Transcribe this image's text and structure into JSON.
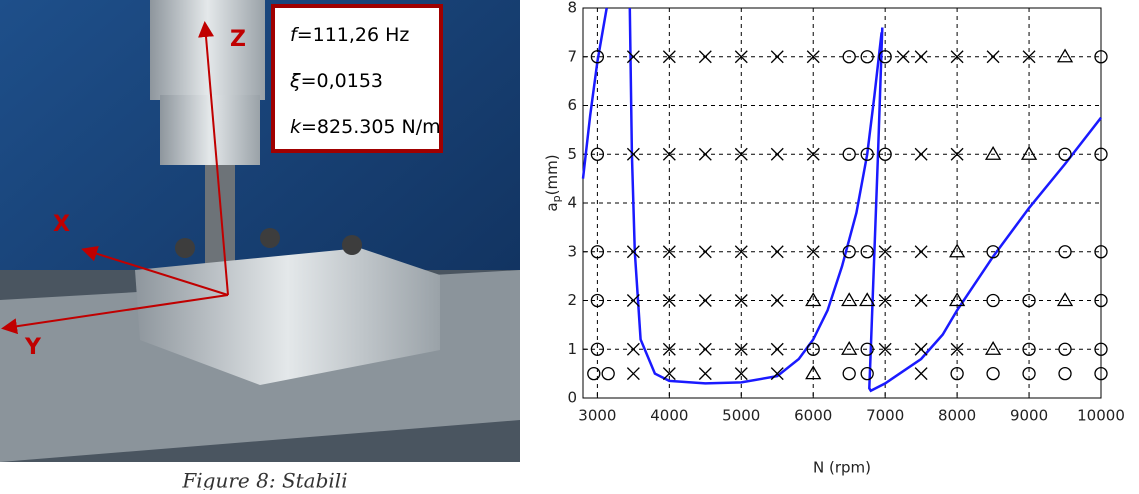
{
  "photo": {
    "axes": [
      "Z",
      "X",
      "Y"
    ],
    "params": [
      {
        "symbol": "f",
        "text": "=111,26 Hz"
      },
      {
        "symbol": "ξ",
        "text": "=0,0153"
      },
      {
        "symbol": "k",
        "text": "=825.305 N/m"
      }
    ],
    "caption": "Figure 8: Stabili"
  },
  "chart_data": {
    "type": "scatter",
    "xlabel": "N (rpm)",
    "ylabel": {
      "base": "a",
      "sub": "p",
      "rest": "(mm)"
    },
    "xlim": [
      2800,
      10000
    ],
    "ylim": [
      0,
      8
    ],
    "xticks": [
      3000,
      4000,
      5000,
      6000,
      7000,
      8000,
      9000,
      10000
    ],
    "yticks": [
      0,
      1,
      2,
      3,
      4,
      5,
      6,
      7,
      8
    ],
    "grid": true,
    "lines": [
      {
        "color": "#1a1aff",
        "x": [
          2800,
          2900,
          3000,
          3130,
          null,
          3450,
          3480,
          3520,
          3600,
          3800,
          4000,
          4500,
          5000,
          5500,
          5800,
          6000,
          6200,
          6400,
          6600,
          6750,
          6850,
          6950,
          null,
          6960,
          6900,
          6850,
          6800,
          6780,
          6800,
          7000,
          7500,
          7800,
          8000,
          8500,
          9000,
          9500,
          10000
        ],
        "values": [
          4.5,
          5.8,
          6.9,
          8,
          null,
          8,
          5,
          3,
          1.2,
          0.5,
          0.35,
          0.3,
          0.32,
          0.45,
          0.8,
          1.2,
          1.8,
          2.7,
          3.8,
          5,
          6.2,
          7.5,
          null,
          7.6,
          5,
          3,
          1,
          0.2,
          0.15,
          0.3,
          0.8,
          1.3,
          1.8,
          2.9,
          3.9,
          4.8,
          5.75
        ]
      }
    ],
    "series": [
      {
        "marker": "circle",
        "color": "#000000",
        "x": [
          3000,
          6500,
          6750,
          7000,
          10000,
          3000,
          6500,
          6750,
          7000,
          9500,
          10000,
          3000,
          6500,
          6750,
          8500,
          9500,
          10000,
          3000,
          8500,
          9000,
          10000,
          3000,
          6000,
          6750,
          9000,
          9500,
          10000,
          2950,
          3150,
          6500,
          6750,
          8000,
          8500,
          9000,
          9500,
          10000
        ],
        "values": [
          7,
          7,
          7,
          7,
          7,
          5,
          5,
          5,
          5,
          5,
          5,
          3,
          3,
          3,
          3,
          3,
          3,
          2,
          2,
          2,
          2,
          1,
          1,
          1,
          1,
          1,
          1,
          0.5,
          0.5,
          0.5,
          0.5,
          0.5,
          0.5,
          0.5,
          0.5,
          0.5
        ]
      },
      {
        "marker": "cross",
        "color": "#000000",
        "x": [
          3500,
          4000,
          4500,
          5000,
          5500,
          6000,
          7250,
          7500,
          8000,
          8500,
          9000,
          3500,
          4000,
          4500,
          5000,
          5500,
          6000,
          7500,
          8000,
          3500,
          4000,
          4500,
          5000,
          5500,
          6000,
          7000,
          7500,
          3500,
          4000,
          4500,
          5000,
          5500,
          7000,
          7500,
          3500,
          4000,
          4500,
          5000,
          5500,
          7000,
          7500,
          8000,
          3500,
          4000,
          4500,
          5000,
          5500,
          7500
        ],
        "values": [
          7,
          7,
          7,
          7,
          7,
          7,
          7,
          7,
          7,
          7,
          7,
          5,
          5,
          5,
          5,
          5,
          5,
          5,
          5,
          3,
          3,
          3,
          3,
          3,
          3,
          3,
          3,
          2,
          2,
          2,
          2,
          2,
          2,
          2,
          1,
          1,
          1,
          1,
          1,
          1,
          1,
          1,
          0.5,
          0.5,
          0.5,
          0.5,
          0.5,
          0.5
        ]
      },
      {
        "marker": "triangle",
        "color": "#000000",
        "x": [
          9500,
          8500,
          9000,
          8000,
          6000,
          6500,
          6750,
          8000,
          9500,
          6500,
          8500,
          6000
        ],
        "values": [
          7,
          5,
          5,
          3,
          2,
          2,
          2,
          2,
          2,
          1,
          1,
          0.5
        ]
      }
    ]
  }
}
